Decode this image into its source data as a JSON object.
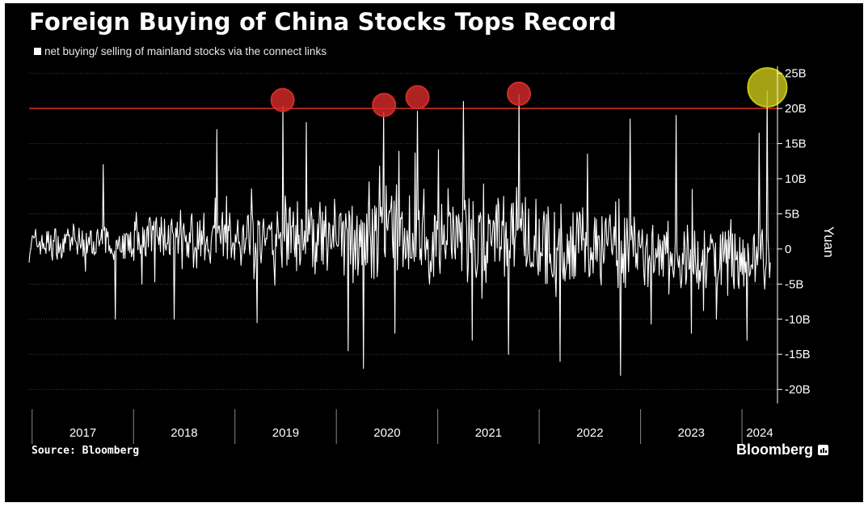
{
  "chart_data": {
    "type": "line",
    "title": "Foreign Buying of China Stocks Tops Record",
    "series": [
      {
        "name": "net buying/ selling of mainland stocks via the connect links"
      }
    ],
    "ylabel": "Yuan",
    "ylim": [
      -22,
      26
    ],
    "yticks": [
      25,
      20,
      15,
      10,
      5,
      0,
      -5,
      -10,
      -15,
      -20
    ],
    "ytick_labels": [
      "25B",
      "20B",
      "15B",
      "10B",
      "5B",
      "0",
      "-5B",
      "-10B",
      "-15B",
      "-20B"
    ],
    "x_range": [
      2016.97,
      2024.35
    ],
    "x_tick_labels": [
      "2017",
      "2018",
      "2019",
      "2020",
      "2021",
      "2022",
      "2023",
      "2024"
    ],
    "reference_line": {
      "y": 20,
      "color": "#d9331f"
    },
    "extremes": [
      {
        "x": 2017.7,
        "y": 12
      },
      {
        "x": 2017.82,
        "y": -10
      },
      {
        "x": 2018.82,
        "y": 17
      },
      {
        "x": 2018.4,
        "y": -10
      },
      {
        "x": 2019.47,
        "y": 20.3
      },
      {
        "x": 2019.22,
        "y": -10.5
      },
      {
        "x": 2019.7,
        "y": 18
      },
      {
        "x": 2020.12,
        "y": -14.5
      },
      {
        "x": 2020.27,
        "y": -17
      },
      {
        "x": 2020.47,
        "y": 19.5
      },
      {
        "x": 2020.58,
        "y": -12
      },
      {
        "x": 2020.8,
        "y": 19.6
      },
      {
        "x": 2021.25,
        "y": 21
      },
      {
        "x": 2021.34,
        "y": -13
      },
      {
        "x": 2021.8,
        "y": 22
      },
      {
        "x": 2021.7,
        "y": -15
      },
      {
        "x": 2022.21,
        "y": -16
      },
      {
        "x": 2022.48,
        "y": 13.5
      },
      {
        "x": 2022.8,
        "y": -18
      },
      {
        "x": 2022.9,
        "y": 18.5
      },
      {
        "x": 2023.35,
        "y": 19
      },
      {
        "x": 2023.5,
        "y": -12
      },
      {
        "x": 2023.75,
        "y": -10
      },
      {
        "x": 2024.05,
        "y": -13
      },
      {
        "x": 2024.17,
        "y": 16.5
      },
      {
        "x": 2024.25,
        "y": 22.5
      }
    ],
    "highlights": [
      {
        "x": 2019.47,
        "y": 21.2,
        "color": "#d42a2a"
      },
      {
        "x": 2020.47,
        "y": 20.5,
        "color": "#d42a2a"
      },
      {
        "x": 2020.8,
        "y": 21.6,
        "color": "#d42a2a"
      },
      {
        "x": 2021.8,
        "y": 22.1,
        "color": "#d42a2a"
      },
      {
        "x": 2024.25,
        "y": 23.0,
        "color": "#c8c41a"
      }
    ],
    "grid": true,
    "legend_position": "top-left"
  },
  "source": "Source: Bloomberg",
  "brand": "Bloomberg",
  "colors": {
    "background": "#000000",
    "series": "#ffffff",
    "grid": "#444444",
    "reference": "#d9331f",
    "highlight_red": "#d42a2a",
    "highlight_yellow": "#c8c41a"
  }
}
